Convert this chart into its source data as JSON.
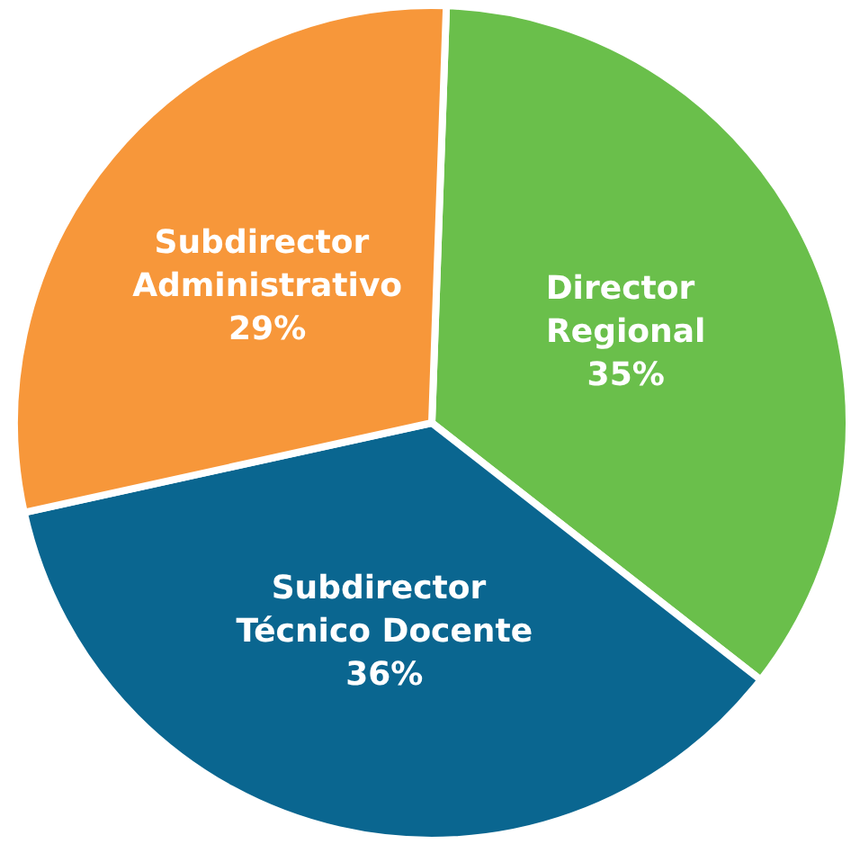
{
  "chart_data": {
    "type": "pie",
    "categories": [
      "Director Regional",
      "Subdirector Técnico Docente",
      "Subdirector Administrativo"
    ],
    "values": [
      35,
      36,
      29
    ],
    "value_labels": [
      "35%",
      "36%",
      "29%"
    ],
    "colors": [
      "#6abf4b",
      "#0a6690",
      "#f7973a"
    ],
    "legend": false
  }
}
